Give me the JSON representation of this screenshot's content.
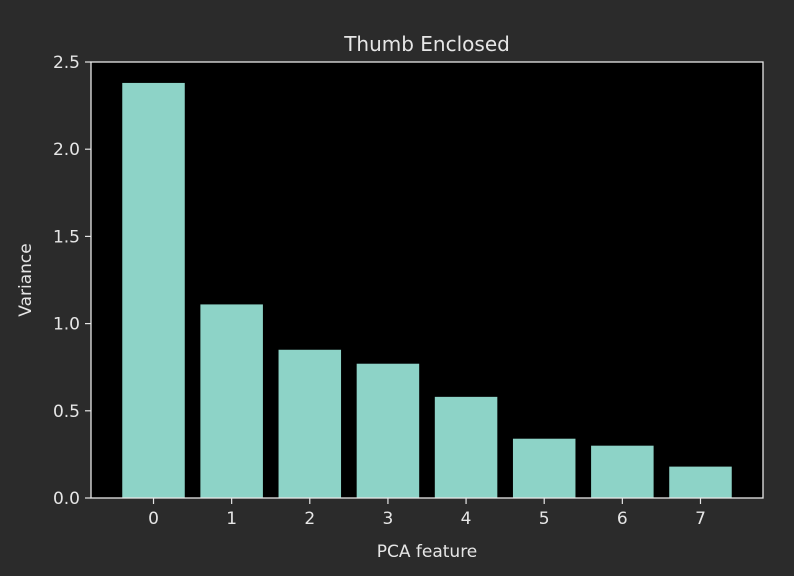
{
  "chart_data": {
    "type": "bar",
    "title": "Thumb Enclosed",
    "xlabel": "PCA feature",
    "ylabel": "Variance",
    "categories": [
      "0",
      "1",
      "2",
      "3",
      "4",
      "5",
      "6",
      "7"
    ],
    "values": [
      2.38,
      1.11,
      0.85,
      0.77,
      0.58,
      0.34,
      0.3,
      0.18
    ],
    "ylim": [
      0,
      2.5
    ],
    "yticks": [
      "0.0",
      "0.5",
      "1.0",
      "1.5",
      "2.0",
      "2.5"
    ],
    "grid": false,
    "colors": {
      "figure_background": "#2b2b2b",
      "axes_background": "#000000",
      "bar": "#8dd3c7",
      "text": "#e6e6e6",
      "axis_line": "#e6e6e6"
    }
  }
}
